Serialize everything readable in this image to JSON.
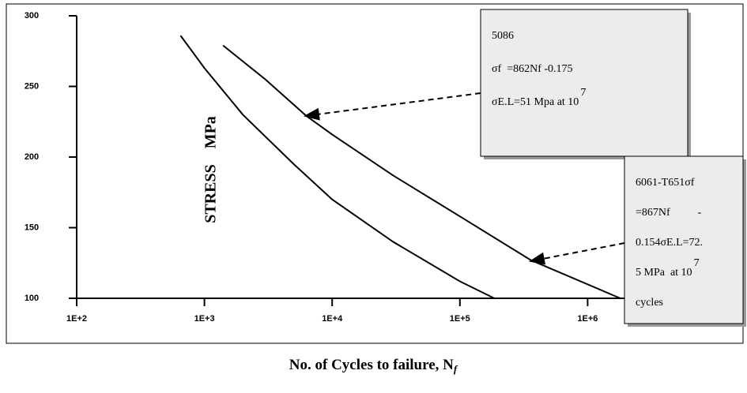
{
  "chart_data": {
    "type": "line",
    "x_label": "No. of Cycles to failure, N",
    "x_label_sub": "f",
    "y_label": "STRESS    MPa",
    "xlog": true,
    "xlim": [
      100,
      10000000
    ],
    "xticks": [
      {
        "value": 100,
        "label": "1E+2"
      },
      {
        "value": 1000,
        "label": "1E+3"
      },
      {
        "value": 10000,
        "label": "1E+4"
      },
      {
        "value": 100000,
        "label": "1E+5"
      },
      {
        "value": 1000000,
        "label": "1E+6"
      }
    ],
    "ylim": [
      100,
      300
    ],
    "yticks": [
      100,
      150,
      200,
      250,
      300
    ],
    "series": [
      {
        "color": "#000000",
        "x": [
          650,
          1000,
          2000,
          5000,
          10000,
          30000,
          100000,
          186000
        ],
        "values": [
          286,
          263,
          230,
          195,
          170,
          140,
          112,
          100
        ]
      },
      {
        "color": "#000000",
        "x": [
          1400,
          3000,
          6300,
          10000,
          30000,
          100000,
          360000,
          1800000
        ],
        "values": [
          279,
          255,
          229,
          216,
          187,
          158,
          127,
          100
        ]
      }
    ],
    "annotations": [
      {
        "lines": [
          "5086",
          "σf  =862Nf -0.175",
          "σE.L=51 Mpa at 10"
        ],
        "sup": "7"
      },
      {
        "lines": [
          "6061-T651σf",
          "=867Nf          -",
          "0.154σE.L=72.",
          "5 MPa  at 10",
          "cycles"
        ],
        "sup": "7"
      }
    ]
  }
}
